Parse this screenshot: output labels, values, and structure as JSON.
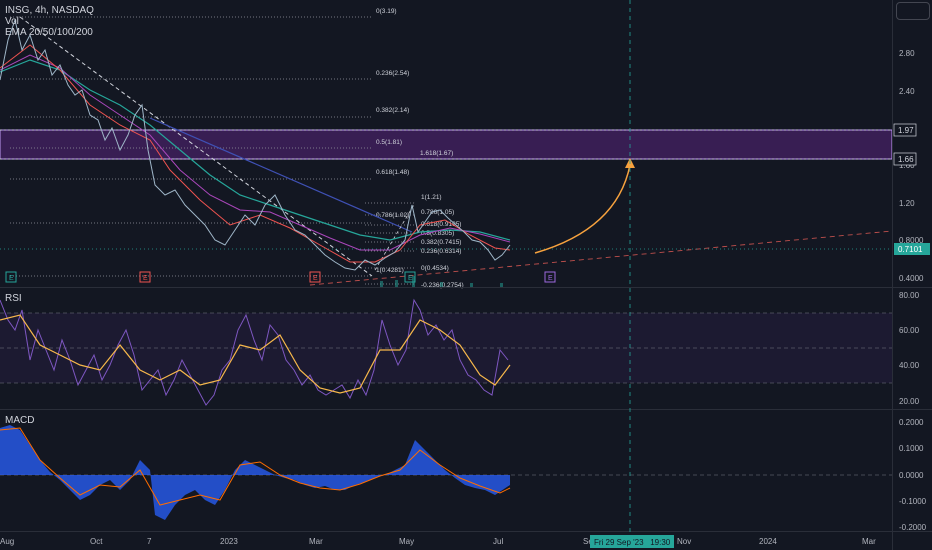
{
  "legend": {
    "symbol_line": "INSG, 4h, NASDAQ",
    "volume_label": "Vol",
    "ema_label": "EMA 20/50/100/200",
    "rsi_label": "RSI",
    "macd_label": "MACD"
  },
  "price_axis": {
    "ticks": [
      "2.80",
      "2.40",
      "1.20",
      "0.8000",
      "0.4000"
    ],
    "partial_tick": "1.60",
    "badges": [
      {
        "label": "1.97",
        "style": "outline"
      },
      {
        "label": "1.66",
        "style": "outline"
      },
      {
        "label": "0.7101",
        "style": "filled",
        "color": "#26a69a"
      }
    ]
  },
  "rsi_axis": {
    "ticks": [
      "80.00",
      "60.00",
      "40.00",
      "20.00"
    ]
  },
  "macd_axis": {
    "ticks": [
      "0.2000",
      "0.1000",
      "0.0000",
      "-0.1000",
      "-0.2000"
    ]
  },
  "time_axis": {
    "labels": [
      "Aug",
      "Oct",
      "7",
      "2023",
      "Mar",
      "May",
      "Jul",
      "Se",
      "Nov",
      "2024",
      "Mar"
    ],
    "crosshair_label": "Fri 29 Sep '23   19:30"
  },
  "fib_left": {
    "levels": [
      {
        "label": "0(3.19)"
      },
      {
        "label": "0.236(2.54)"
      },
      {
        "label": "0.382(2.14)"
      },
      {
        "label": "0.5(1.81)"
      },
      {
        "label": "0.618(1.48)"
      },
      {
        "label": "0.786(1.02)"
      },
      {
        "label": "1(0.4281)"
      }
    ]
  },
  "fib_ext": {
    "label": "1.618(1.67)"
  },
  "fib_right": {
    "levels": [
      {
        "label": "1(1.21)"
      },
      {
        "label": "0.786(1.05)"
      },
      {
        "label": "0.618(0.9195)"
      },
      {
        "label": "0.5(0.8305)"
      },
      {
        "label": "0.382(0.7415)"
      },
      {
        "label": "0.236(0.6314)"
      },
      {
        "label": "0(0.4534)"
      },
      {
        "label": "-0.236(0.2754)"
      }
    ]
  },
  "earnings_markers": [
    {
      "label": "E",
      "color": "#26a69a"
    },
    {
      "label": "E",
      "color": "#ef5350"
    },
    {
      "label": "E",
      "color": "#ef5350"
    },
    {
      "label": "E",
      "color": "#26a69a"
    },
    {
      "label": "E",
      "color": "#9c6ade"
    }
  ],
  "icons": {
    "earnings": "earnings-marker-icon",
    "settings": "chart-settings-icon",
    "projection": "curved-arrow-icon"
  },
  "colors": {
    "background": "#131722",
    "zone_fill": "#5b2b7a",
    "zone_border": "#c8a2ff",
    "projection_arrow": "#f7a23e",
    "trendline_white": "#d1d4dc",
    "trendline_blue": "#4959c9",
    "trendline_red": "#c0504d",
    "ema_short": "#ef5350",
    "ema_mid": "#ab47bc",
    "ema_long": "#26a69a",
    "rsi": "#7e57c2",
    "rsi_ma": "#f7b84b",
    "macd_hist": "#2962ff",
    "macd_signal": "#ff6d00",
    "crosshair": "#26a69a"
  }
}
